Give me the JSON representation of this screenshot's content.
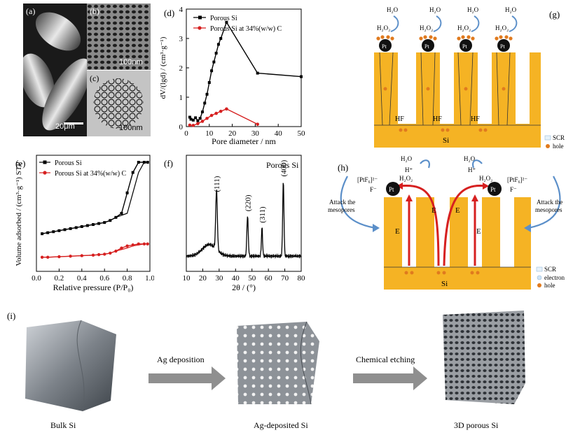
{
  "panel_labels": {
    "a": "(a)",
    "b": "(b)",
    "c": "(c)",
    "d": "(d)",
    "e": "(e)",
    "f": "(f)",
    "g": "(g)",
    "h": "(h)",
    "i": "(i)"
  },
  "sem": {
    "a_scale": "20μm",
    "b_scale": "100nm",
    "c_scale": "100nm"
  },
  "chart_data": [
    {
      "type": "line",
      "panel": "(d)",
      "xlabel": "Pore diameter / nm",
      "ylabel": "dV/(lgd) / (cm³·g⁻¹)",
      "xlim": [
        0,
        50
      ],
      "ylim": [
        0,
        4
      ],
      "xticks": [
        0,
        10,
        20,
        30,
        40,
        50
      ],
      "yticks": [
        0,
        1,
        2,
        3,
        4
      ],
      "legend": "top-left",
      "series": [
        {
          "name": "Porous Si",
          "color": "#000000",
          "x": [
            1.5,
            2,
            3,
            4,
            5,
            6,
            7,
            8,
            9,
            10,
            11,
            12,
            13,
            14,
            15,
            17.5,
            31,
            50
          ],
          "y": [
            0.32,
            0.25,
            0.22,
            0.3,
            0.2,
            0.28,
            0.5,
            0.8,
            1.1,
            1.5,
            1.9,
            2.2,
            2.5,
            2.8,
            3.0,
            3.55,
            1.82,
            1.7
          ]
        },
        {
          "name": "Porous Si at 34%(w/w) C",
          "color": "#d62020",
          "x": [
            1.5,
            3,
            5,
            7,
            9,
            11,
            13,
            15,
            17.5,
            31
          ],
          "y": [
            0.05,
            0.04,
            0.1,
            0.18,
            0.28,
            0.38,
            0.45,
            0.52,
            0.6,
            0.08
          ]
        }
      ]
    },
    {
      "type": "line",
      "panel": "(e)",
      "xlabel": "Relative pressure (P/P₀)",
      "ylabel": "Volume adsorbed / (cm³·g⁻¹) STP",
      "xlim": [
        0,
        1.0
      ],
      "xticks": [
        "0.0",
        "0.2",
        "0.4",
        "0.6",
        "0.8",
        "1.0"
      ],
      "legend": "top-left",
      "series": [
        {
          "name": "Porous Si",
          "color": "#000000",
          "x": [
            0.05,
            0.1,
            0.15,
            0.2,
            0.25,
            0.3,
            0.35,
            0.4,
            0.45,
            0.5,
            0.55,
            0.6,
            0.65,
            0.7,
            0.75,
            0.8,
            0.85,
            0.9,
            0.95,
            0.98
          ],
          "y": [
            0.3,
            0.31,
            0.32,
            0.33,
            0.34,
            0.35,
            0.36,
            0.37,
            0.38,
            0.39,
            0.4,
            0.41,
            0.43,
            0.46,
            0.5,
            0.7,
            0.9,
            1.0,
            1.0,
            1.0
          ]
        },
        {
          "name": "Porous Si at 34%(w/w) C",
          "color": "#d62020",
          "x": [
            0.05,
            0.1,
            0.2,
            0.3,
            0.4,
            0.5,
            0.55,
            0.6,
            0.65,
            0.7,
            0.75,
            0.8,
            0.85,
            0.9,
            0.95,
            0.98
          ],
          "y": [
            0.07,
            0.07,
            0.075,
            0.08,
            0.085,
            0.09,
            0.095,
            0.1,
            0.11,
            0.13,
            0.16,
            0.18,
            0.19,
            0.2,
            0.2,
            0.2
          ]
        }
      ]
    },
    {
      "type": "line",
      "panel": "(f)",
      "title": "Porous Si",
      "xlabel": "2θ / (°)",
      "xlim": [
        10,
        80
      ],
      "xticks": [
        10,
        20,
        30,
        40,
        50,
        60,
        70,
        80
      ],
      "peaks": [
        {
          "label": "(111)",
          "x": 28.4
        },
        {
          "label": "(220)",
          "x": 47.3
        },
        {
          "label": "(311)",
          "x": 56.1
        },
        {
          "label": "(400)",
          "x": 69.1
        }
      ]
    }
  ],
  "schematic_g": {
    "h2o": "H₂O",
    "h2o2": "H₂O₂",
    "pt": "Pt",
    "hf": "HF",
    "si": "Si",
    "legend_scr": "SCR",
    "legend_hole": "hole"
  },
  "schematic_h": {
    "h2o": "H₂O",
    "h2o2": "H₂O₂",
    "hplus": "H⁺",
    "ptf6": "[PtF₆]²⁻",
    "fminus": "F⁻",
    "pt": "Pt",
    "e": "E",
    "attack_line1": "Attack the",
    "attack_line2": "mesopores",
    "si": "Si",
    "legend_scr": "SCR",
    "legend_electron": "electron",
    "legend_hole": "hole"
  },
  "schematic_i": {
    "bulk": "Bulk Si",
    "ag_deposited": "Ag-deposited Si",
    "porous": "3D porous Si",
    "step1": "Ag deposition",
    "step2": "Chemical etching"
  },
  "colors": {
    "si_orange": "#f5b324",
    "red": "#d62020",
    "arrow_blue": "#5b8fc9",
    "arrow_gray": "#8f8f8f"
  }
}
